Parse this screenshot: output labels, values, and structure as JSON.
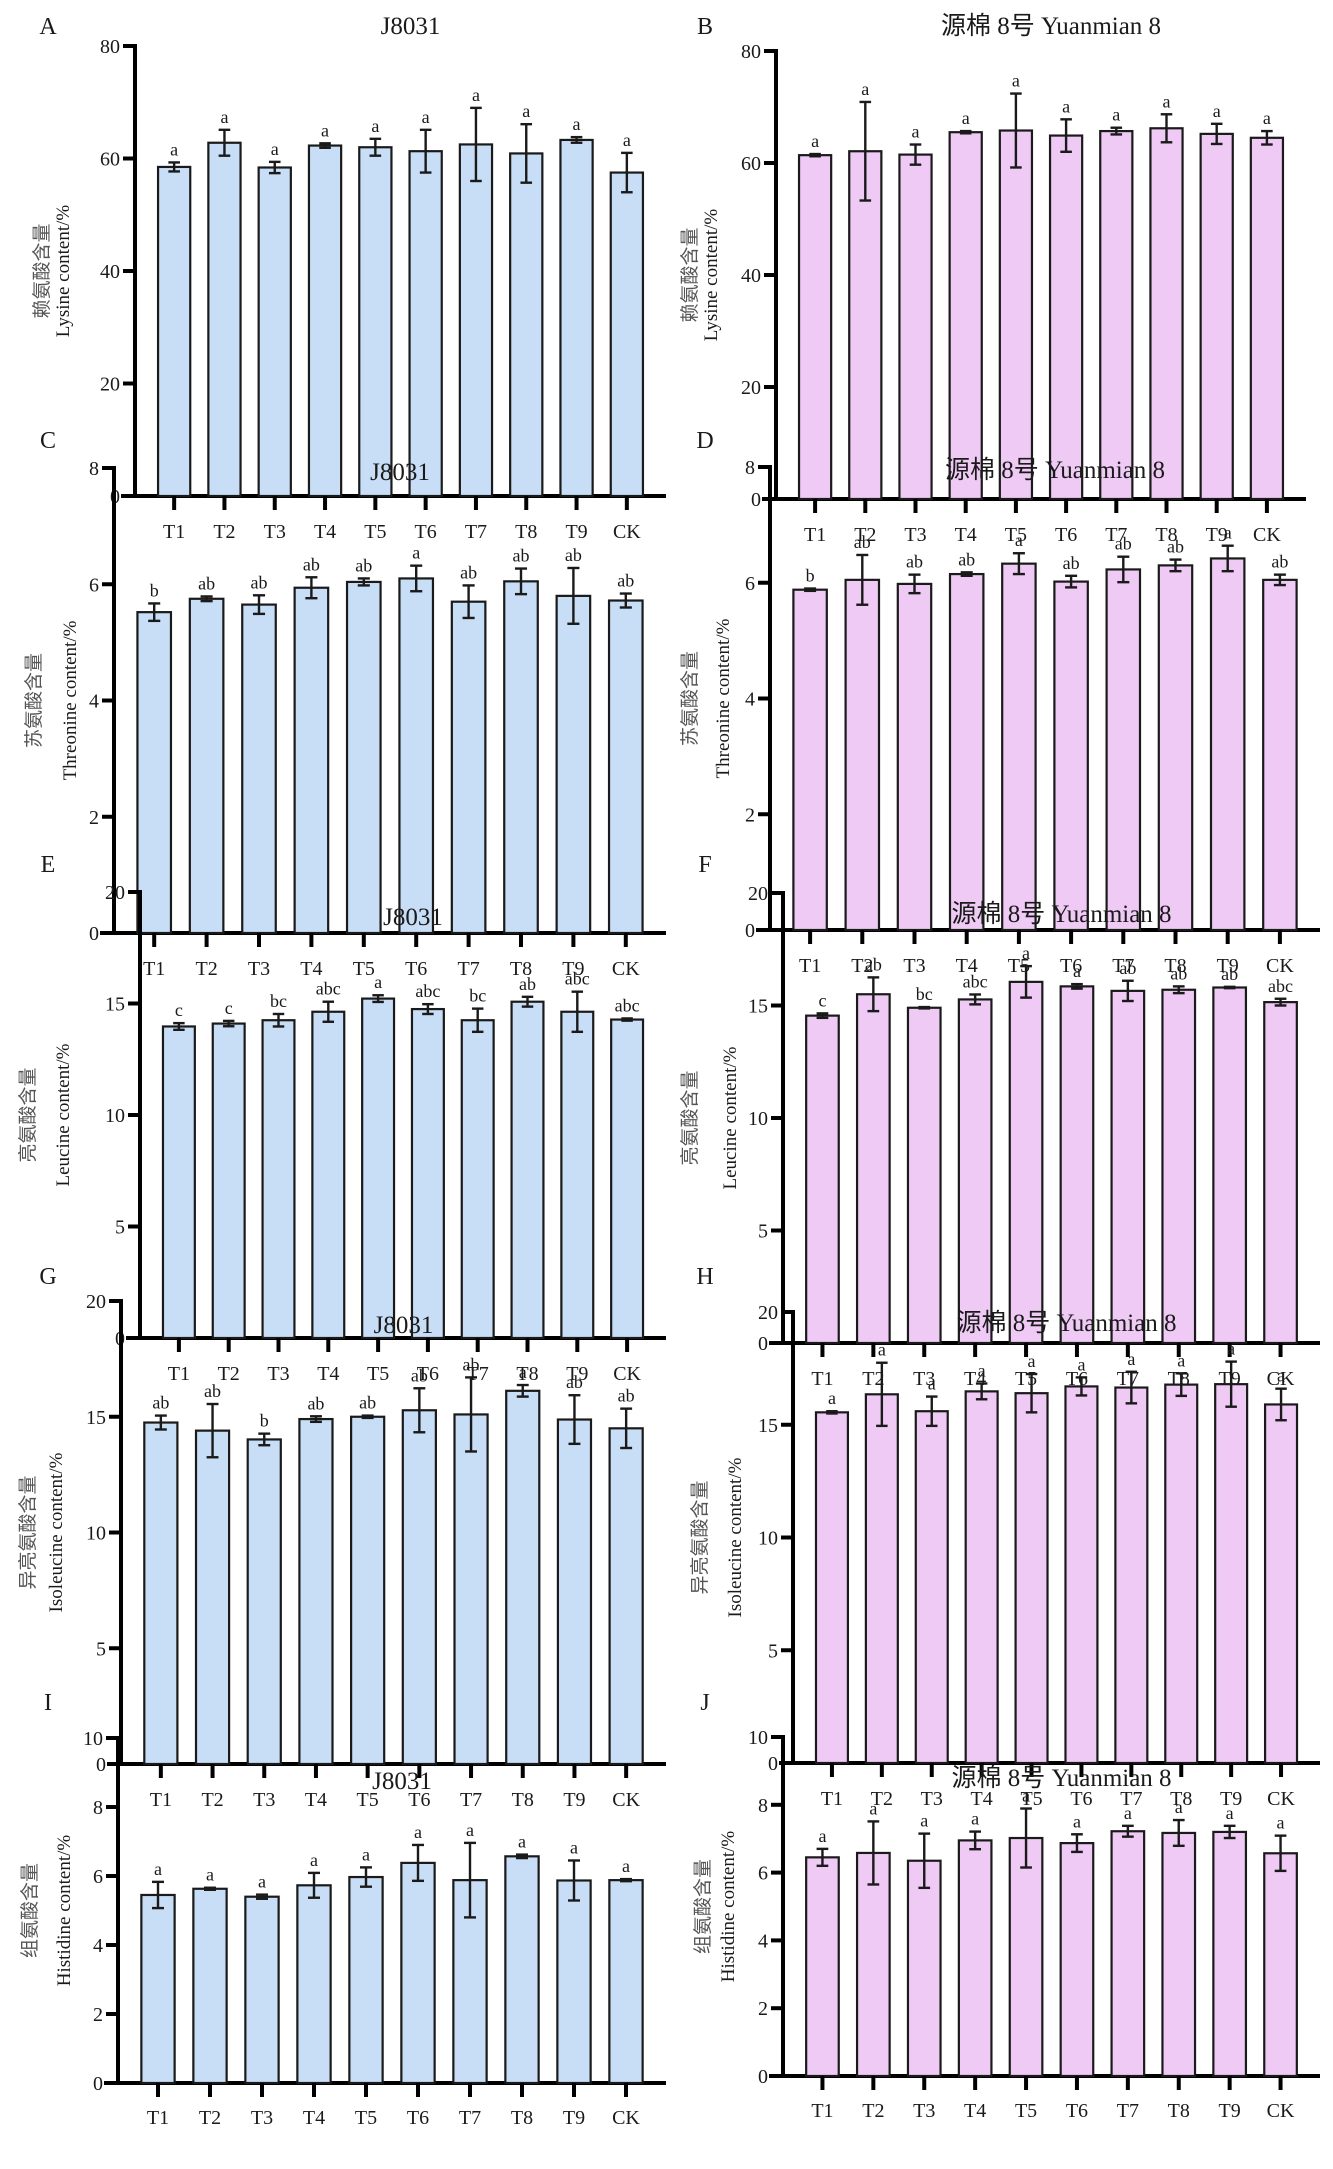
{
  "figure": {
    "colors": {
      "J8031": "#c8ddf6",
      "Yuanmian8": "#eecaf5",
      "axis": "#000000",
      "bar_edge": "#1a1a1a"
    }
  },
  "chart_data": [
    {
      "panel": "A",
      "type": "bar",
      "title": "J8031",
      "xlabel": "",
      "ylabel_cn": "赖氨酸含量",
      "ylabel": "Lysine content/%",
      "categories": [
        "T1",
        "T2",
        "T3",
        "T4",
        "T5",
        "T6",
        "T7",
        "T8",
        "T9",
        "CK"
      ],
      "values": [
        58.5,
        62.8,
        58.4,
        62.3,
        62.0,
        61.3,
        62.5,
        60.9,
        63.3,
        57.5
      ],
      "errors": [
        0.8,
        2.3,
        1.0,
        0.4,
        1.5,
        3.8,
        6.5,
        5.2,
        0.5,
        3.5
      ],
      "significance": [
        "a",
        "a",
        "a",
        "a",
        "a",
        "a",
        "a",
        "a",
        "a",
        "a"
      ],
      "ylim": [
        0,
        80
      ],
      "yticks": [
        0,
        20,
        40,
        60,
        80
      ],
      "color_key": "J8031",
      "grid": false,
      "legend": "none"
    },
    {
      "panel": "B",
      "type": "bar",
      "title": "源棉 8号 Yuanmian 8",
      "xlabel": "",
      "ylabel_cn": "赖氨酸含量",
      "ylabel": "Lysine content/%",
      "categories": [
        "T1",
        "T2",
        "T3",
        "T4",
        "T5",
        "T6",
        "T7",
        "T8",
        "T9",
        "CK"
      ],
      "values": [
        61.4,
        62.1,
        61.5,
        65.5,
        65.8,
        64.9,
        65.7,
        66.2,
        65.2,
        64.5
      ],
      "errors": [
        0.2,
        8.8,
        1.8,
        0.2,
        6.6,
        2.9,
        0.6,
        2.5,
        1.8,
        1.2
      ],
      "significance": [
        "a",
        "a",
        "a",
        "a",
        "a",
        "a",
        "a",
        "a",
        "a",
        "a"
      ],
      "ylim": [
        0,
        80
      ],
      "yticks": [
        0,
        20,
        40,
        60,
        80
      ],
      "color_key": "Yuanmian8",
      "grid": false,
      "legend": "none"
    },
    {
      "panel": "C",
      "type": "bar",
      "title": "J8031",
      "xlabel": "",
      "ylabel_cn": "苏氨酸含量",
      "ylabel": "Threonine content/%",
      "categories": [
        "T1",
        "T2",
        "T3",
        "T4",
        "T5",
        "T6",
        "T7",
        "T8",
        "T9",
        "CK"
      ],
      "values": [
        5.52,
        5.75,
        5.65,
        5.94,
        6.04,
        6.1,
        5.7,
        6.05,
        5.8,
        5.72
      ],
      "errors": [
        0.15,
        0.04,
        0.16,
        0.18,
        0.06,
        0.22,
        0.28,
        0.22,
        0.48,
        0.12
      ],
      "significance": [
        "b",
        "ab",
        "ab",
        "ab",
        "ab",
        "a",
        "ab",
        "ab",
        "ab",
        "ab"
      ],
      "ylim": [
        0,
        8
      ],
      "yticks": [
        0,
        2,
        4,
        6,
        8
      ],
      "color_key": "J8031",
      "grid": false,
      "legend": "none"
    },
    {
      "panel": "D",
      "type": "bar",
      "title": "源棉 8号 Yuanmian 8",
      "xlabel": "",
      "ylabel_cn": "苏氨酸含量",
      "ylabel": "Threonine content/%",
      "categories": [
        "T1",
        "T2",
        "T3",
        "T4",
        "T5",
        "T6",
        "T7",
        "T8",
        "T9",
        "CK"
      ],
      "values": [
        5.88,
        6.05,
        5.98,
        6.15,
        6.33,
        6.02,
        6.23,
        6.3,
        6.42,
        6.05
      ],
      "errors": [
        0.02,
        0.43,
        0.16,
        0.03,
        0.18,
        0.1,
        0.22,
        0.1,
        0.22,
        0.09
      ],
      "significance": [
        "b",
        "ab",
        "ab",
        "ab",
        "a",
        "ab",
        "ab",
        "ab",
        "a",
        "ab"
      ],
      "ylim": [
        0,
        8
      ],
      "yticks": [
        0,
        2,
        4,
        6,
        8
      ],
      "color_key": "Yuanmian8",
      "grid": false,
      "legend": "none"
    },
    {
      "panel": "E",
      "type": "bar",
      "title": "J8031",
      "xlabel": "",
      "ylabel_cn": "亮氨酸含量",
      "ylabel": "Leucine content/%",
      "categories": [
        "T1",
        "T2",
        "T3",
        "T4",
        "T5",
        "T6",
        "T7",
        "T8",
        "T9",
        "CK"
      ],
      "values": [
        13.97,
        14.1,
        14.25,
        14.63,
        15.22,
        14.75,
        14.25,
        15.08,
        14.63,
        14.28
      ],
      "errors": [
        0.15,
        0.12,
        0.28,
        0.45,
        0.15,
        0.22,
        0.52,
        0.22,
        0.9,
        0.05
      ],
      "significance": [
        "c",
        "c",
        "bc",
        "abc",
        "a",
        "abc",
        "bc",
        "ab",
        "abc",
        "abc"
      ],
      "ylim": [
        0,
        20
      ],
      "yticks": [
        0,
        5,
        10,
        15,
        20
      ],
      "color_key": "J8031",
      "grid": false,
      "legend": "none"
    },
    {
      "panel": "F",
      "type": "bar",
      "title": "源棉 8号 Yuanmian 8",
      "xlabel": "",
      "ylabel_cn": "亮氨酸含量",
      "ylabel": "Leucine content/%",
      "categories": [
        "T1",
        "T2",
        "T3",
        "T4",
        "T5",
        "T6",
        "T7",
        "T8",
        "T9",
        "CK"
      ],
      "values": [
        14.55,
        15.5,
        14.9,
        15.27,
        16.05,
        15.85,
        15.65,
        15.7,
        15.8,
        15.15
      ],
      "errors": [
        0.1,
        0.75,
        0.03,
        0.22,
        0.7,
        0.1,
        0.45,
        0.15,
        0.03,
        0.15
      ],
      "significance": [
        "c",
        "ab",
        "bc",
        "abc",
        "a",
        "a",
        "ab",
        "ab",
        "ab",
        "abc"
      ],
      "ylim": [
        0,
        20
      ],
      "yticks": [
        0,
        5,
        10,
        15,
        20
      ],
      "color_key": "Yuanmian8",
      "grid": false,
      "legend": "none"
    },
    {
      "panel": "G",
      "type": "bar",
      "title": "J8031",
      "xlabel": "",
      "ylabel_cn": "异亮氨酸含量",
      "ylabel": "Isoleucine content/%",
      "categories": [
        "T1",
        "T2",
        "T3",
        "T4",
        "T5",
        "T6",
        "T7",
        "T8",
        "T9",
        "CK"
      ],
      "values": [
        14.75,
        14.4,
        14.02,
        14.9,
        15.0,
        15.28,
        15.1,
        16.12,
        14.88,
        14.5
      ],
      "errors": [
        0.3,
        1.15,
        0.25,
        0.12,
        0.05,
        0.95,
        1.6,
        0.25,
        1.05,
        0.85
      ],
      "significance": [
        "ab",
        "ab",
        "b",
        "ab",
        "ab",
        "ab",
        "ab",
        "a",
        "ab",
        "ab"
      ],
      "ylim": [
        0,
        20
      ],
      "yticks": [
        0,
        5,
        10,
        15,
        20
      ],
      "color_key": "J8031",
      "grid": false,
      "legend": "none"
    },
    {
      "panel": "H",
      "type": "bar",
      "title": "源棉 8号 Yuanmian 8",
      "xlabel": "",
      "ylabel_cn": "异亮氨酸含量",
      "ylabel": "Isoleucine content/%",
      "categories": [
        "T1",
        "T2",
        "T3",
        "T4",
        "T5",
        "T6",
        "T7",
        "T8",
        "T9",
        "CK"
      ],
      "values": [
        15.55,
        16.35,
        15.6,
        16.48,
        16.4,
        16.7,
        16.65,
        16.78,
        16.8,
        15.9
      ],
      "errors": [
        0.05,
        1.4,
        0.65,
        0.35,
        0.85,
        0.4,
        0.7,
        0.5,
        1.0,
        0.7
      ],
      "significance": [
        "a",
        "a",
        "a",
        "a",
        "a",
        "a",
        "a",
        "a",
        "a",
        "a"
      ],
      "ylim": [
        0,
        20
      ],
      "yticks": [
        0,
        5,
        10,
        15,
        20
      ],
      "color_key": "Yuanmian8",
      "grid": false,
      "legend": "none"
    },
    {
      "panel": "I",
      "type": "bar",
      "title": "J8031",
      "xlabel": "",
      "ylabel_cn": "组氨酸含量",
      "ylabel": "Histidine content/%",
      "categories": [
        "T1",
        "T2",
        "T3",
        "T4",
        "T5",
        "T6",
        "T7",
        "T8",
        "T9",
        "CK"
      ],
      "values": [
        5.45,
        5.63,
        5.4,
        5.73,
        5.97,
        6.38,
        5.88,
        6.57,
        5.87,
        5.88
      ],
      "errors": [
        0.38,
        0.03,
        0.06,
        0.36,
        0.28,
        0.52,
        1.08,
        0.05,
        0.58,
        0.03
      ],
      "significance": [
        "a",
        "a",
        "a",
        "a",
        "a",
        "a",
        "a",
        "a",
        "a",
        "a"
      ],
      "ylim": [
        0,
        10
      ],
      "yticks": [
        0,
        2,
        4,
        6,
        8,
        10
      ],
      "color_key": "J8031",
      "grid": false,
      "legend": "none"
    },
    {
      "panel": "J",
      "type": "bar",
      "title": "源棉 8号 Yuanmian 8",
      "xlabel": "",
      "ylabel_cn": "组氨酸含量",
      "ylabel": "Histidine content/%",
      "categories": [
        "T1",
        "T2",
        "T3",
        "T4",
        "T5",
        "T6",
        "T7",
        "T8",
        "T9",
        "CK"
      ],
      "values": [
        6.45,
        6.58,
        6.35,
        6.95,
        7.02,
        6.87,
        7.22,
        7.17,
        7.2,
        6.57
      ],
      "errors": [
        0.25,
        0.93,
        0.8,
        0.26,
        0.87,
        0.26,
        0.16,
        0.38,
        0.18,
        0.52
      ],
      "significance": [
        "a",
        "a",
        "a",
        "a",
        "a",
        "a",
        "a",
        "a",
        "a",
        "a"
      ],
      "ylim": [
        0,
        10
      ],
      "yticks": [
        0,
        2,
        4,
        6,
        8,
        10
      ],
      "color_key": "Yuanmian8",
      "grid": false,
      "legend": "none"
    }
  ]
}
